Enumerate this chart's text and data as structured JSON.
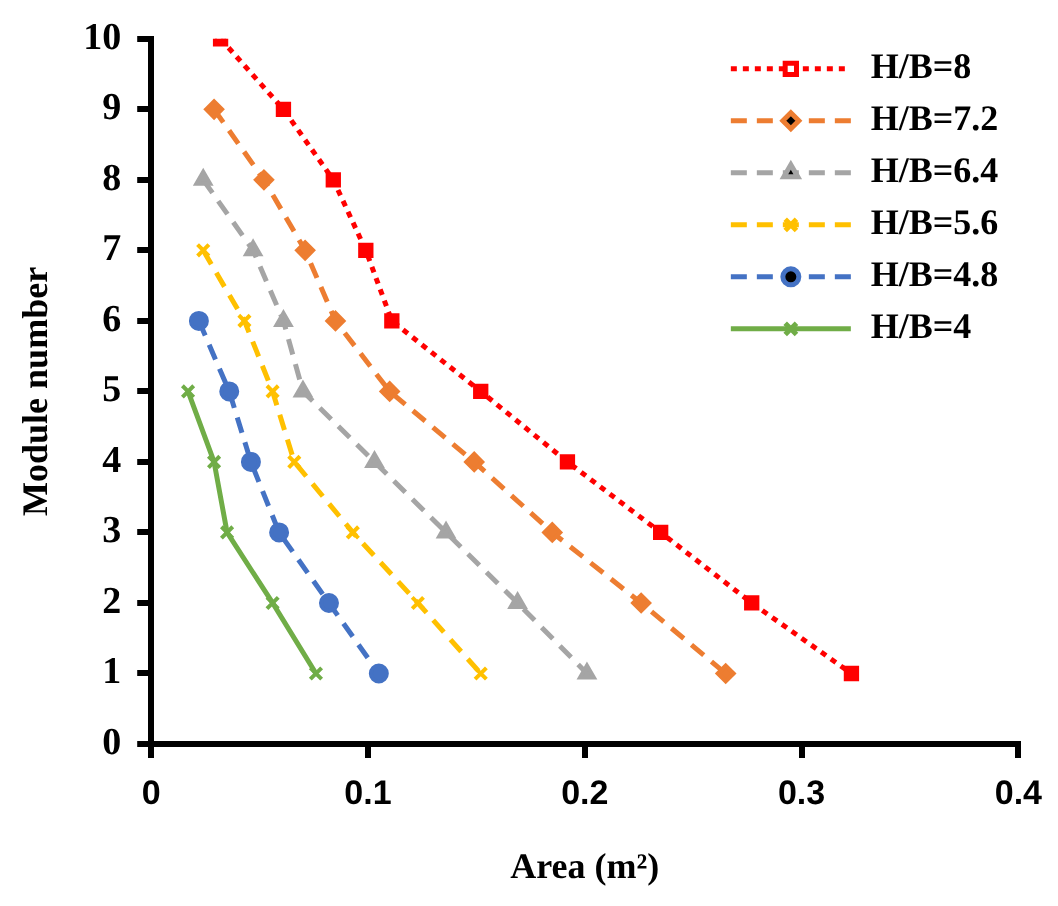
{
  "chart_data": {
    "type": "line",
    "xlabel": "Area (m²)",
    "ylabel": "Module number",
    "xlim": [
      0,
      0.4
    ],
    "xticks": [
      0,
      0.1,
      0.2,
      0.3,
      0.4
    ],
    "ylim": [
      0,
      10
    ],
    "yticks": [
      0,
      1,
      2,
      3,
      4,
      5,
      6,
      7,
      8,
      9,
      10
    ],
    "grid": false,
    "legend": "top right",
    "series": [
      {
        "name": "H/B=8",
        "color": "#ff0000",
        "marker": "square",
        "line_style": "dotted",
        "x": [
          0.032,
          0.061,
          0.084,
          0.099,
          0.111,
          0.152,
          0.192,
          0.235,
          0.277,
          0.323
        ],
        "values": [
          10,
          9,
          8,
          7,
          6,
          5,
          4,
          3,
          2,
          1
        ]
      },
      {
        "name": "H/B=7.2",
        "color": "#ed7d31",
        "marker": "diamond",
        "line_style": "dashed",
        "x": [
          0.029,
          0.052,
          0.071,
          0.085,
          0.11,
          0.149,
          0.185,
          0.226,
          0.265
        ],
        "values": [
          9,
          8,
          7,
          6,
          5,
          4,
          3,
          2,
          1
        ]
      },
      {
        "name": "H/B=6.4",
        "color": "#a5a5a5",
        "marker": "triangle",
        "line_style": "dashed",
        "x": [
          0.024,
          0.047,
          0.061,
          0.07,
          0.103,
          0.136,
          0.169,
          0.201
        ],
        "values": [
          8,
          7,
          6,
          5,
          4,
          3,
          2,
          1
        ]
      },
      {
        "name": "H/B=5.6",
        "color": "#ffc000",
        "marker": "cross",
        "line_style": "dashed",
        "x": [
          0.024,
          0.043,
          0.056,
          0.066,
          0.093,
          0.123,
          0.152
        ],
        "values": [
          7,
          6,
          5,
          4,
          3,
          2,
          1
        ]
      },
      {
        "name": "H/B=4.8",
        "color": "#4472c4",
        "marker": "circle",
        "line_style": "dashed",
        "x": [
          0.022,
          0.036,
          0.046,
          0.059,
          0.082,
          0.105
        ],
        "values": [
          6,
          5,
          4,
          3,
          2,
          1
        ]
      },
      {
        "name": "H/B=4",
        "color": "#70ad47",
        "marker": "cross",
        "line_style": "solid",
        "x": [
          0.017,
          0.029,
          0.035,
          0.056,
          0.076
        ],
        "values": [
          5,
          4,
          3,
          2,
          1
        ]
      }
    ]
  }
}
